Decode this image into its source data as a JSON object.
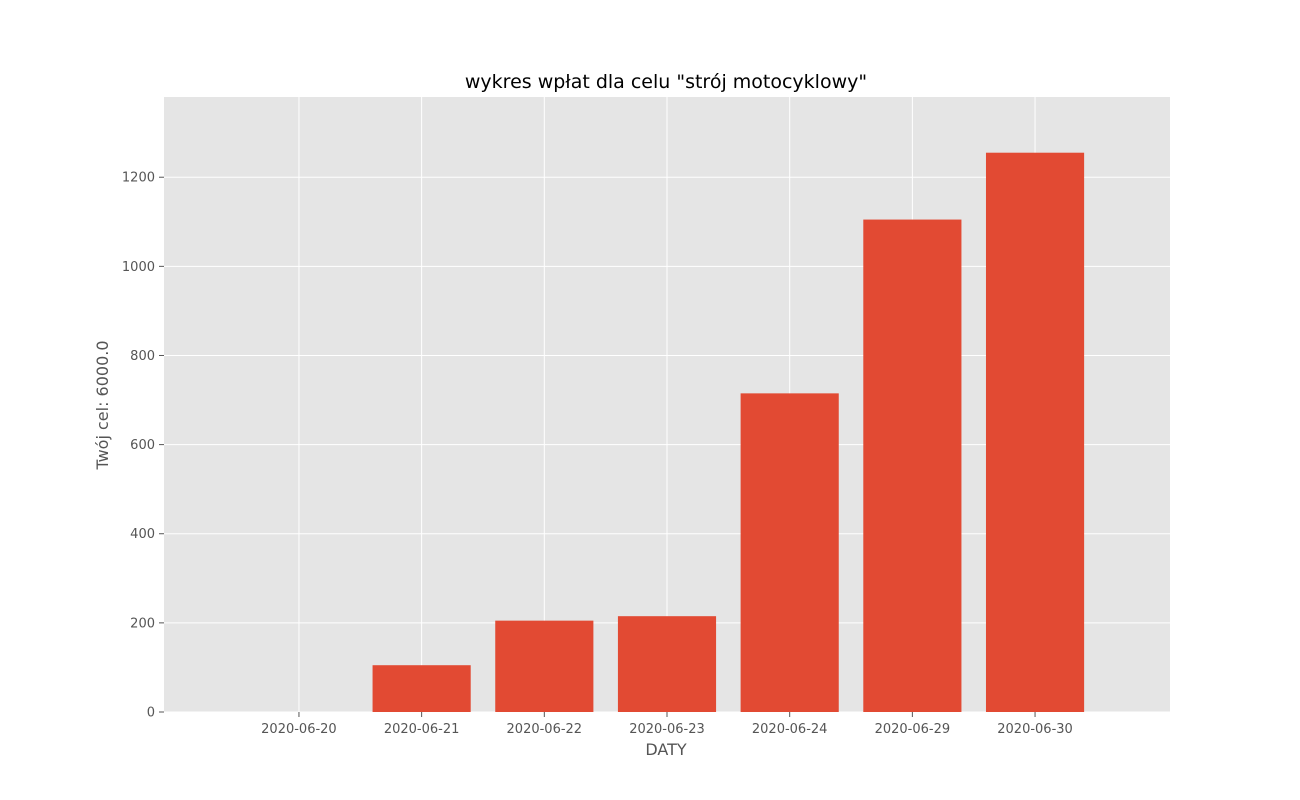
{
  "chart_data": {
    "type": "bar",
    "title": "wykres wpłat dla celu \"strój motocyklowy\"",
    "xlabel": "DATY",
    "ylabel": "Twój cel: 6000.0",
    "categories": [
      "2020-06-20",
      "2020-06-21",
      "2020-06-22",
      "2020-06-23",
      "2020-06-24",
      "2020-06-29",
      "2020-06-30"
    ],
    "values": [
      0,
      105,
      205,
      215,
      715,
      1105,
      1255
    ],
    "ylim": [
      0,
      1380
    ],
    "yticks": [
      "0",
      "200",
      "400",
      "600",
      "800",
      "1000",
      "1200"
    ],
    "grid": true,
    "legend": false,
    "colors": {
      "bar": "#e24a33",
      "plot_background": "#e5e5e5",
      "grid": "#ffffff",
      "tick_text": "#555555",
      "title_text": "#000000"
    }
  }
}
